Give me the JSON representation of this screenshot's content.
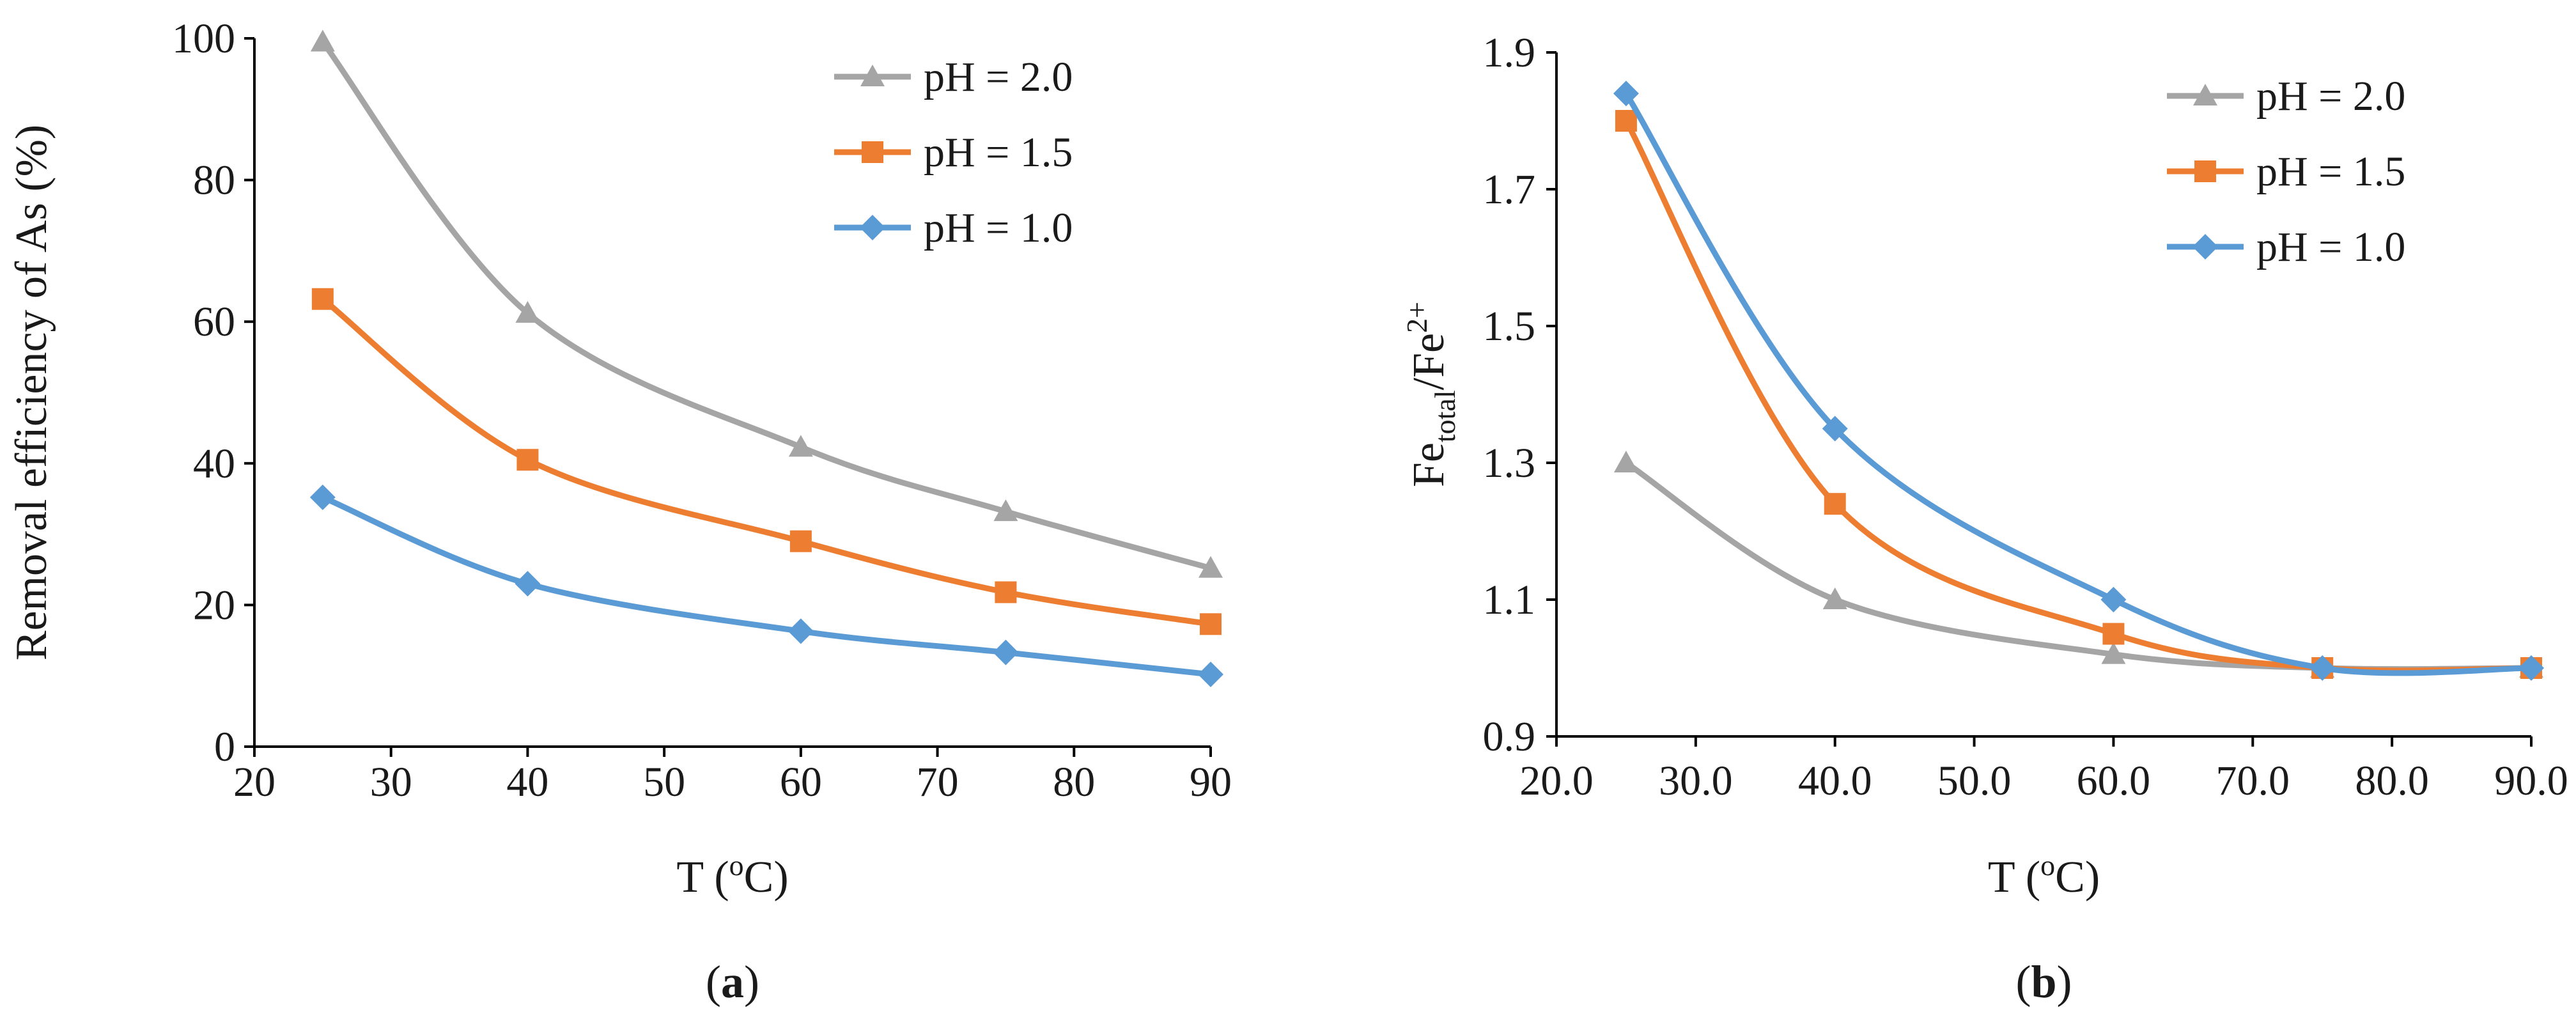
{
  "chart_data": [
    {
      "type": "line",
      "panel": "(a)",
      "panel_letter": "a",
      "smooth": true,
      "xlabel_main": "T (",
      "xlabel_sup": "o",
      "xlabel_end": "C)",
      "ylabel": "Removal efficiency of As (%)",
      "xlim": [
        20,
        90
      ],
      "ylim": [
        0,
        100
      ],
      "x_ticks": [
        20,
        30,
        40,
        50,
        60,
        70,
        80,
        90
      ],
      "x_tick_labels": [
        "20",
        "30",
        "40",
        "50",
        "60",
        "70",
        "80",
        "90"
      ],
      "y_ticks": [
        0,
        20,
        40,
        60,
        80,
        100
      ],
      "y_tick_labels": [
        "0",
        "20",
        "40",
        "60",
        "80",
        "100"
      ],
      "grid": false,
      "legend_position": "top-right",
      "series": [
        {
          "name": "pH = 2.0",
          "color": "#a5a5a5",
          "marker": "triangle",
          "x": [
            25,
            40,
            60,
            75,
            90
          ],
          "y": [
            99.5,
            61.2,
            42.3,
            33.2,
            25.2
          ]
        },
        {
          "name": "pH = 1.5",
          "color": "#ed7d31",
          "marker": "square",
          "x": [
            25,
            40,
            60,
            75,
            90
          ],
          "y": [
            63.2,
            40.5,
            29.0,
            21.8,
            17.3
          ]
        },
        {
          "name": "pH = 1.0",
          "color": "#5b9bd5",
          "marker": "diamond",
          "x": [
            25,
            40,
            60,
            75,
            90
          ],
          "y": [
            35.2,
            23.0,
            16.3,
            13.3,
            10.2
          ]
        }
      ]
    },
    {
      "type": "line",
      "panel": "(b)",
      "panel_letter": "b",
      "smooth": true,
      "xlabel_main": "T (",
      "xlabel_sup": "o",
      "xlabel_end": "C)",
      "ylabel_main": "Fe",
      "ylabel_sub": "total",
      "ylabel_mid": "/Fe",
      "ylabel_sup": "2+",
      "xlim": [
        20,
        90
      ],
      "ylim": [
        0.9,
        1.9
      ],
      "x_ticks": [
        20,
        30,
        40,
        50,
        60,
        70,
        80,
        90
      ],
      "x_tick_labels": [
        "20.0",
        "30.0",
        "40.0",
        "50.0",
        "60.0",
        "70.0",
        "80.0",
        "90.0"
      ],
      "y_ticks": [
        0.9,
        1.1,
        1.3,
        1.5,
        1.7,
        1.9
      ],
      "y_tick_labels": [
        "0.9",
        "1.1",
        "1.3",
        "1.5",
        "1.7",
        "1.9"
      ],
      "grid": false,
      "legend_position": "top-right",
      "series": [
        {
          "name": "pH = 2.0",
          "color": "#a5a5a5",
          "marker": "triangle",
          "x": [
            25,
            40,
            60,
            75,
            90
          ],
          "y": [
            1.3,
            1.1,
            1.02,
            1.0,
            1.0
          ]
        },
        {
          "name": "pH = 1.5",
          "color": "#ed7d31",
          "marker": "square",
          "x": [
            25,
            40,
            60,
            75,
            90
          ],
          "y": [
            1.8,
            1.24,
            1.05,
            1.0,
            1.0
          ]
        },
        {
          "name": "pH = 1.0",
          "color": "#5b9bd5",
          "marker": "diamond",
          "x": [
            25,
            40,
            60,
            75,
            90
          ],
          "y": [
            1.84,
            1.35,
            1.1,
            1.0,
            1.0
          ]
        }
      ]
    }
  ]
}
